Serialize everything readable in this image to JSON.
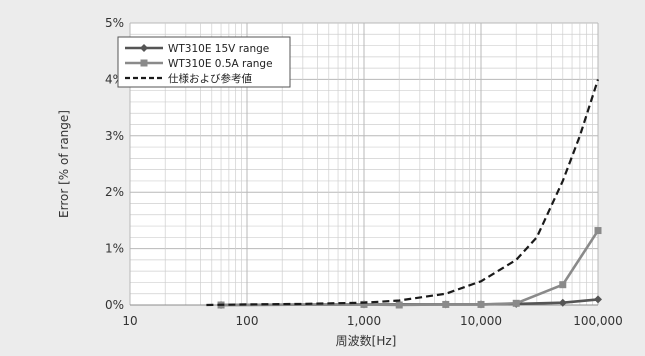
{
  "chart_data": {
    "type": "line",
    "xscale": "log",
    "xlim": [
      10,
      100000
    ],
    "ylim": [
      0,
      5
    ],
    "xlabel": "周波数[Hz]",
    "ylabel": "Error [% of range]",
    "x_ticks": [
      10,
      100,
      1000,
      10000,
      100000
    ],
    "x_tick_labels": [
      "10",
      "100",
      "1,000",
      "10,000",
      "100,000"
    ],
    "y_ticks": [
      0,
      1,
      2,
      3,
      4,
      5
    ],
    "y_tick_labels": [
      "0%",
      "1%",
      "2%",
      "3%",
      "4%",
      "5%"
    ],
    "grid": true,
    "legend_position": "top-left",
    "series": [
      {
        "name": "WT310E 15V range",
        "color": "#555555",
        "marker": "diamond",
        "dash": "solid",
        "x": [
          60,
          1000,
          2000,
          5000,
          10000,
          20000,
          50000,
          100000
        ],
        "y": [
          0.0,
          0.01,
          0.01,
          0.01,
          0.01,
          0.02,
          0.04,
          0.1
        ]
      },
      {
        "name": "WT310E 0.5A range",
        "color": "#8a8a8a",
        "marker": "square",
        "dash": "solid",
        "x": [
          60,
          1000,
          2000,
          5000,
          10000,
          20000,
          50000,
          100000
        ],
        "y": [
          0.0,
          0.01,
          0.0,
          0.01,
          0.01,
          0.03,
          0.36,
          1.32
        ]
      },
      {
        "name": "仕様および参考値",
        "color": "#1a1a1a",
        "marker": "none",
        "dash": "dashed",
        "x": [
          45,
          100,
          300,
          1000,
          2000,
          5000,
          10000,
          20000,
          30000,
          50000,
          70000,
          100000
        ],
        "y": [
          0.0,
          0.01,
          0.02,
          0.04,
          0.08,
          0.2,
          0.42,
          0.8,
          1.2,
          2.2,
          3.0,
          4.0
        ]
      }
    ]
  }
}
